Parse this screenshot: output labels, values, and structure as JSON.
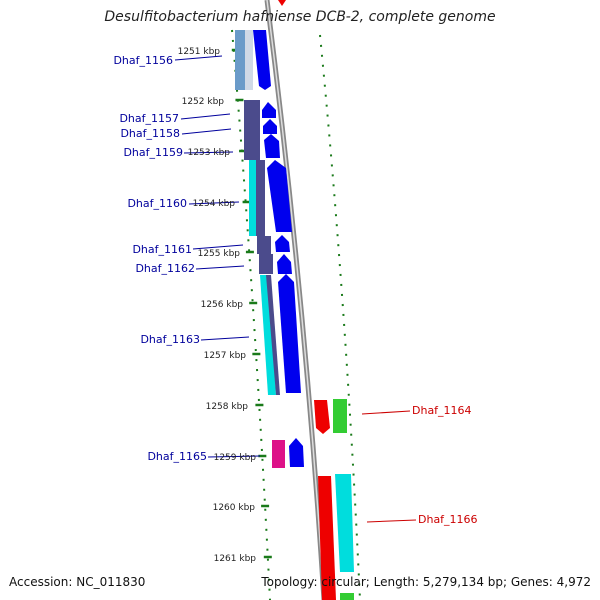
{
  "title": "Desulfitobacterium hafniense DCB-2, complete genome",
  "footer": {
    "accession": "Accession: NC_011830",
    "summary": "Topology: circular; Length: 5,279,134 bp; Genes: 4,972"
  },
  "scale_labels": [
    "1251 kbp",
    "1252 kbp",
    "1253 kbp",
    "1254 kbp",
    "1255 kbp",
    "1256 kbp",
    "1257 kbp",
    "1258 kbp",
    "1259 kbp",
    "1260 kbp",
    "1261 kbp"
  ],
  "gene_labels": {
    "left": [
      "Dhaf_1156",
      "Dhaf_1157",
      "Dhaf_1158",
      "Dhaf_1159",
      "Dhaf_1160",
      "Dhaf_1161",
      "Dhaf_1162",
      "Dhaf_1163",
      "Dhaf_1165"
    ],
    "right": [
      "Dhaf_1164",
      "Dhaf_1166"
    ]
  },
  "colors": {
    "forward_label": "#00009c",
    "reverse_label": "#cc0000",
    "tick": "#1a7a1a",
    "blue": "#0000ee",
    "cyan": "#00dddd",
    "slate": "#4b4b8c",
    "red": "#ee0000",
    "green": "#33cc33",
    "magenta": "#dd1188",
    "backbone": "#888888"
  }
}
